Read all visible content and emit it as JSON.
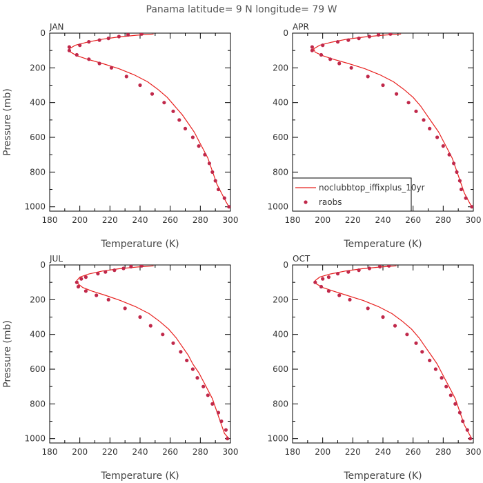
{
  "title": "Panama  latitude= 9 N longitude= 79 W",
  "colors": {
    "model": "#e8201e",
    "obs": "#c0284a"
  },
  "chart_data": [
    {
      "type": "line",
      "panel": "JAN",
      "xlabel": "Temperature (K)",
      "ylabel": "Pressure (mb)",
      "xlim": [
        180,
        300
      ],
      "ylim": [
        1025,
        0
      ],
      "xticks": [
        180,
        200,
        220,
        240,
        260,
        280,
        300
      ],
      "yticks": [
        0,
        200,
        400,
        600,
        800,
        1000
      ],
      "series": [
        {
          "name": "noclubbtop_iffixplus_10yr",
          "style": "line",
          "points": [
            [
              249,
              5
            ],
            [
              238,
              12
            ],
            [
              226,
              22
            ],
            [
              215,
              35
            ],
            [
              205,
              52
            ],
            [
              197,
              70
            ],
            [
              193,
              90
            ],
            [
              194,
              110
            ],
            [
              198,
              130
            ],
            [
              205,
              150
            ],
            [
              215,
              175
            ],
            [
              226,
              205
            ],
            [
              236,
              240
            ],
            [
              245,
              280
            ],
            [
              252,
              325
            ],
            [
              258,
              370
            ],
            [
              263,
              420
            ],
            [
              268,
              470
            ],
            [
              272,
              520
            ],
            [
              276,
              570
            ],
            [
              279,
              620
            ],
            [
              282,
              670
            ],
            [
              285,
              720
            ],
            [
              287,
              770
            ],
            [
              289,
              820
            ],
            [
              291,
              870
            ],
            [
              294,
              920
            ],
            [
              297,
              970
            ],
            [
              299,
              1000
            ]
          ]
        },
        {
          "name": "raobs",
          "style": "marker",
          "points": [
            [
              241,
              5
            ],
            [
              232,
              10
            ],
            [
              226,
              20
            ],
            [
              219,
              30
            ],
            [
              213,
              40
            ],
            [
              206,
              50
            ],
            [
              200,
              70
            ],
            [
              193,
              80
            ],
            [
              193,
              100
            ],
            [
              198,
              125
            ],
            [
              206,
              150
            ],
            [
              213,
              175
            ],
            [
              221,
              200
            ],
            [
              231,
              250
            ],
            [
              240,
              300
            ],
            [
              248,
              350
            ],
            [
              256,
              400
            ],
            [
              262,
              450
            ],
            [
              266,
              500
            ],
            [
              270,
              550
            ],
            [
              275,
              600
            ],
            [
              279,
              650
            ],
            [
              283,
              700
            ],
            [
              286,
              750
            ],
            [
              288,
              800
            ],
            [
              290,
              850
            ],
            [
              292,
              900
            ],
            [
              296,
              950
            ],
            [
              299,
              1000
            ]
          ]
        }
      ]
    },
    {
      "type": "line",
      "panel": "APR",
      "xlabel": "Temperature (K)",
      "ylabel": "",
      "xlim": [
        180,
        300
      ],
      "ylim": [
        1025,
        0
      ],
      "xticks": [
        180,
        200,
        220,
        240,
        260,
        280,
        300
      ],
      "yticks": [
        0,
        200,
        400,
        600,
        800,
        1000
      ],
      "legend": "bottom-right",
      "series": [
        {
          "name": "noclubbtop_iffixplus_10yr",
          "style": "line",
          "points": [
            [
              252,
              5
            ],
            [
              240,
              12
            ],
            [
              228,
              22
            ],
            [
              216,
              35
            ],
            [
              206,
              52
            ],
            [
              198,
              70
            ],
            [
              194,
              90
            ],
            [
              195,
              110
            ],
            [
              200,
              130
            ],
            [
              207,
              150
            ],
            [
              217,
              175
            ],
            [
              228,
              205
            ],
            [
              238,
              240
            ],
            [
              247,
              280
            ],
            [
              254,
              325
            ],
            [
              260,
              370
            ],
            [
              265,
              420
            ],
            [
              269,
              470
            ],
            [
              273,
              520
            ],
            [
              277,
              570
            ],
            [
              280,
              620
            ],
            [
              283,
              670
            ],
            [
              286,
              720
            ],
            [
              288,
              770
            ],
            [
              290,
              820
            ],
            [
              292,
              870
            ],
            [
              294,
              920
            ],
            [
              297,
              970
            ],
            [
              299,
              1000
            ]
          ]
        },
        {
          "name": "raobs",
          "style": "marker",
          "points": [
            [
              245,
              5
            ],
            [
              237,
              10
            ],
            [
              231,
              20
            ],
            [
              224,
              30
            ],
            [
              217,
              40
            ],
            [
              210,
              50
            ],
            [
              200,
              70
            ],
            [
              193,
              80
            ],
            [
              193,
              100
            ],
            [
              199,
              125
            ],
            [
              205,
              150
            ],
            [
              211,
              175
            ],
            [
              219,
              200
            ],
            [
              230,
              250
            ],
            [
              240,
              300
            ],
            [
              249,
              350
            ],
            [
              257,
              400
            ],
            [
              262,
              450
            ],
            [
              267,
              500
            ],
            [
              271,
              550
            ],
            [
              276,
              600
            ],
            [
              280,
              650
            ],
            [
              284,
              700
            ],
            [
              287,
              750
            ],
            [
              289,
              800
            ],
            [
              291,
              850
            ],
            [
              292,
              900
            ],
            [
              295,
              950
            ],
            [
              299,
              1000
            ]
          ]
        }
      ]
    },
    {
      "type": "line",
      "panel": "JUL",
      "xlabel": "Temperature (K)",
      "ylabel": "Pressure (mb)",
      "xlim": [
        180,
        300
      ],
      "ylim": [
        1025,
        0
      ],
      "xticks": [
        180,
        200,
        220,
        240,
        260,
        280,
        300
      ],
      "yticks": [
        0,
        200,
        400,
        600,
        800,
        1000
      ],
      "series": [
        {
          "name": "noclubbtop_iffixplus_10yr",
          "style": "line",
          "points": [
            [
              249,
              5
            ],
            [
              238,
              12
            ],
            [
              226,
              22
            ],
            [
              215,
              35
            ],
            [
              206,
              52
            ],
            [
              200,
              70
            ],
            [
              198,
              90
            ],
            [
              199,
              110
            ],
            [
              202,
              130
            ],
            [
              208,
              150
            ],
            [
              217,
              175
            ],
            [
              227,
              205
            ],
            [
              237,
              240
            ],
            [
              246,
              280
            ],
            [
              253,
              325
            ],
            [
              259,
              370
            ],
            [
              264,
              420
            ],
            [
              268,
              470
            ],
            [
              272,
              520
            ],
            [
              275,
              570
            ],
            [
              279,
              620
            ],
            [
              282,
              670
            ],
            [
              285,
              720
            ],
            [
              288,
              770
            ],
            [
              290,
              820
            ],
            [
              292,
              870
            ],
            [
              294,
              920
            ],
            [
              296,
              970
            ],
            [
              299,
              1000
            ]
          ]
        },
        {
          "name": "raobs",
          "style": "marker",
          "points": [
            [
              241,
              5
            ],
            [
              234,
              10
            ],
            [
              229,
              20
            ],
            [
              223,
              30
            ],
            [
              217,
              40
            ],
            [
              212,
              50
            ],
            [
              204,
              70
            ],
            [
              201,
              80
            ],
            [
              198,
              100
            ],
            [
              199,
              125
            ],
            [
              204,
              150
            ],
            [
              211,
              175
            ],
            [
              219,
              200
            ],
            [
              230,
              250
            ],
            [
              240,
              300
            ],
            [
              247,
              350
            ],
            [
              255,
              400
            ],
            [
              262,
              450
            ],
            [
              267,
              500
            ],
            [
              271,
              550
            ],
            [
              275,
              600
            ],
            [
              278,
              650
            ],
            [
              282,
              700
            ],
            [
              285,
              750
            ],
            [
              288,
              800
            ],
            [
              292,
              850
            ],
            [
              294,
              900
            ],
            [
              297,
              950
            ],
            [
              298,
              1000
            ]
          ]
        }
      ]
    },
    {
      "type": "line",
      "panel": "OCT",
      "xlabel": "Temperature (K)",
      "ylabel": "",
      "xlim": [
        180,
        300
      ],
      "ylim": [
        1025,
        0
      ],
      "xticks": [
        180,
        200,
        220,
        240,
        260,
        280,
        300
      ],
      "yticks": [
        0,
        200,
        400,
        600,
        800,
        1000
      ],
      "series": [
        {
          "name": "noclubbtop_iffixplus_10yr",
          "style": "line",
          "points": [
            [
              249,
              5
            ],
            [
              238,
              12
            ],
            [
              226,
              22
            ],
            [
              215,
              35
            ],
            [
              205,
              52
            ],
            [
              198,
              70
            ],
            [
              195,
              90
            ],
            [
              196,
              110
            ],
            [
              200,
              130
            ],
            [
              207,
              150
            ],
            [
              216,
              175
            ],
            [
              227,
              205
            ],
            [
              237,
              240
            ],
            [
              246,
              280
            ],
            [
              253,
              325
            ],
            [
              259,
              370
            ],
            [
              264,
              420
            ],
            [
              268,
              470
            ],
            [
              272,
              520
            ],
            [
              276,
              570
            ],
            [
              279,
              620
            ],
            [
              282,
              670
            ],
            [
              285,
              720
            ],
            [
              288,
              770
            ],
            [
              290,
              820
            ],
            [
              292,
              870
            ],
            [
              294,
              920
            ],
            [
              297,
              970
            ],
            [
              299,
              1000
            ]
          ]
        },
        {
          "name": "raobs",
          "style": "marker",
          "points": [
            [
              244,
              5
            ],
            [
              238,
              10
            ],
            [
              231,
              20
            ],
            [
              224,
              30
            ],
            [
              217,
              40
            ],
            [
              210,
              50
            ],
            [
              204,
              70
            ],
            [
              200,
              80
            ],
            [
              195,
              100
            ],
            [
              199,
              125
            ],
            [
              204,
              150
            ],
            [
              211,
              175
            ],
            [
              218,
              200
            ],
            [
              230,
              250
            ],
            [
              240,
              300
            ],
            [
              248,
              350
            ],
            [
              256,
              400
            ],
            [
              262,
              450
            ],
            [
              266,
              500
            ],
            [
              271,
              550
            ],
            [
              275,
              600
            ],
            [
              279,
              650
            ],
            [
              282,
              700
            ],
            [
              285,
              750
            ],
            [
              288,
              800
            ],
            [
              291,
              850
            ],
            [
              293,
              900
            ],
            [
              296,
              950
            ],
            [
              298,
              1000
            ]
          ]
        }
      ]
    }
  ]
}
